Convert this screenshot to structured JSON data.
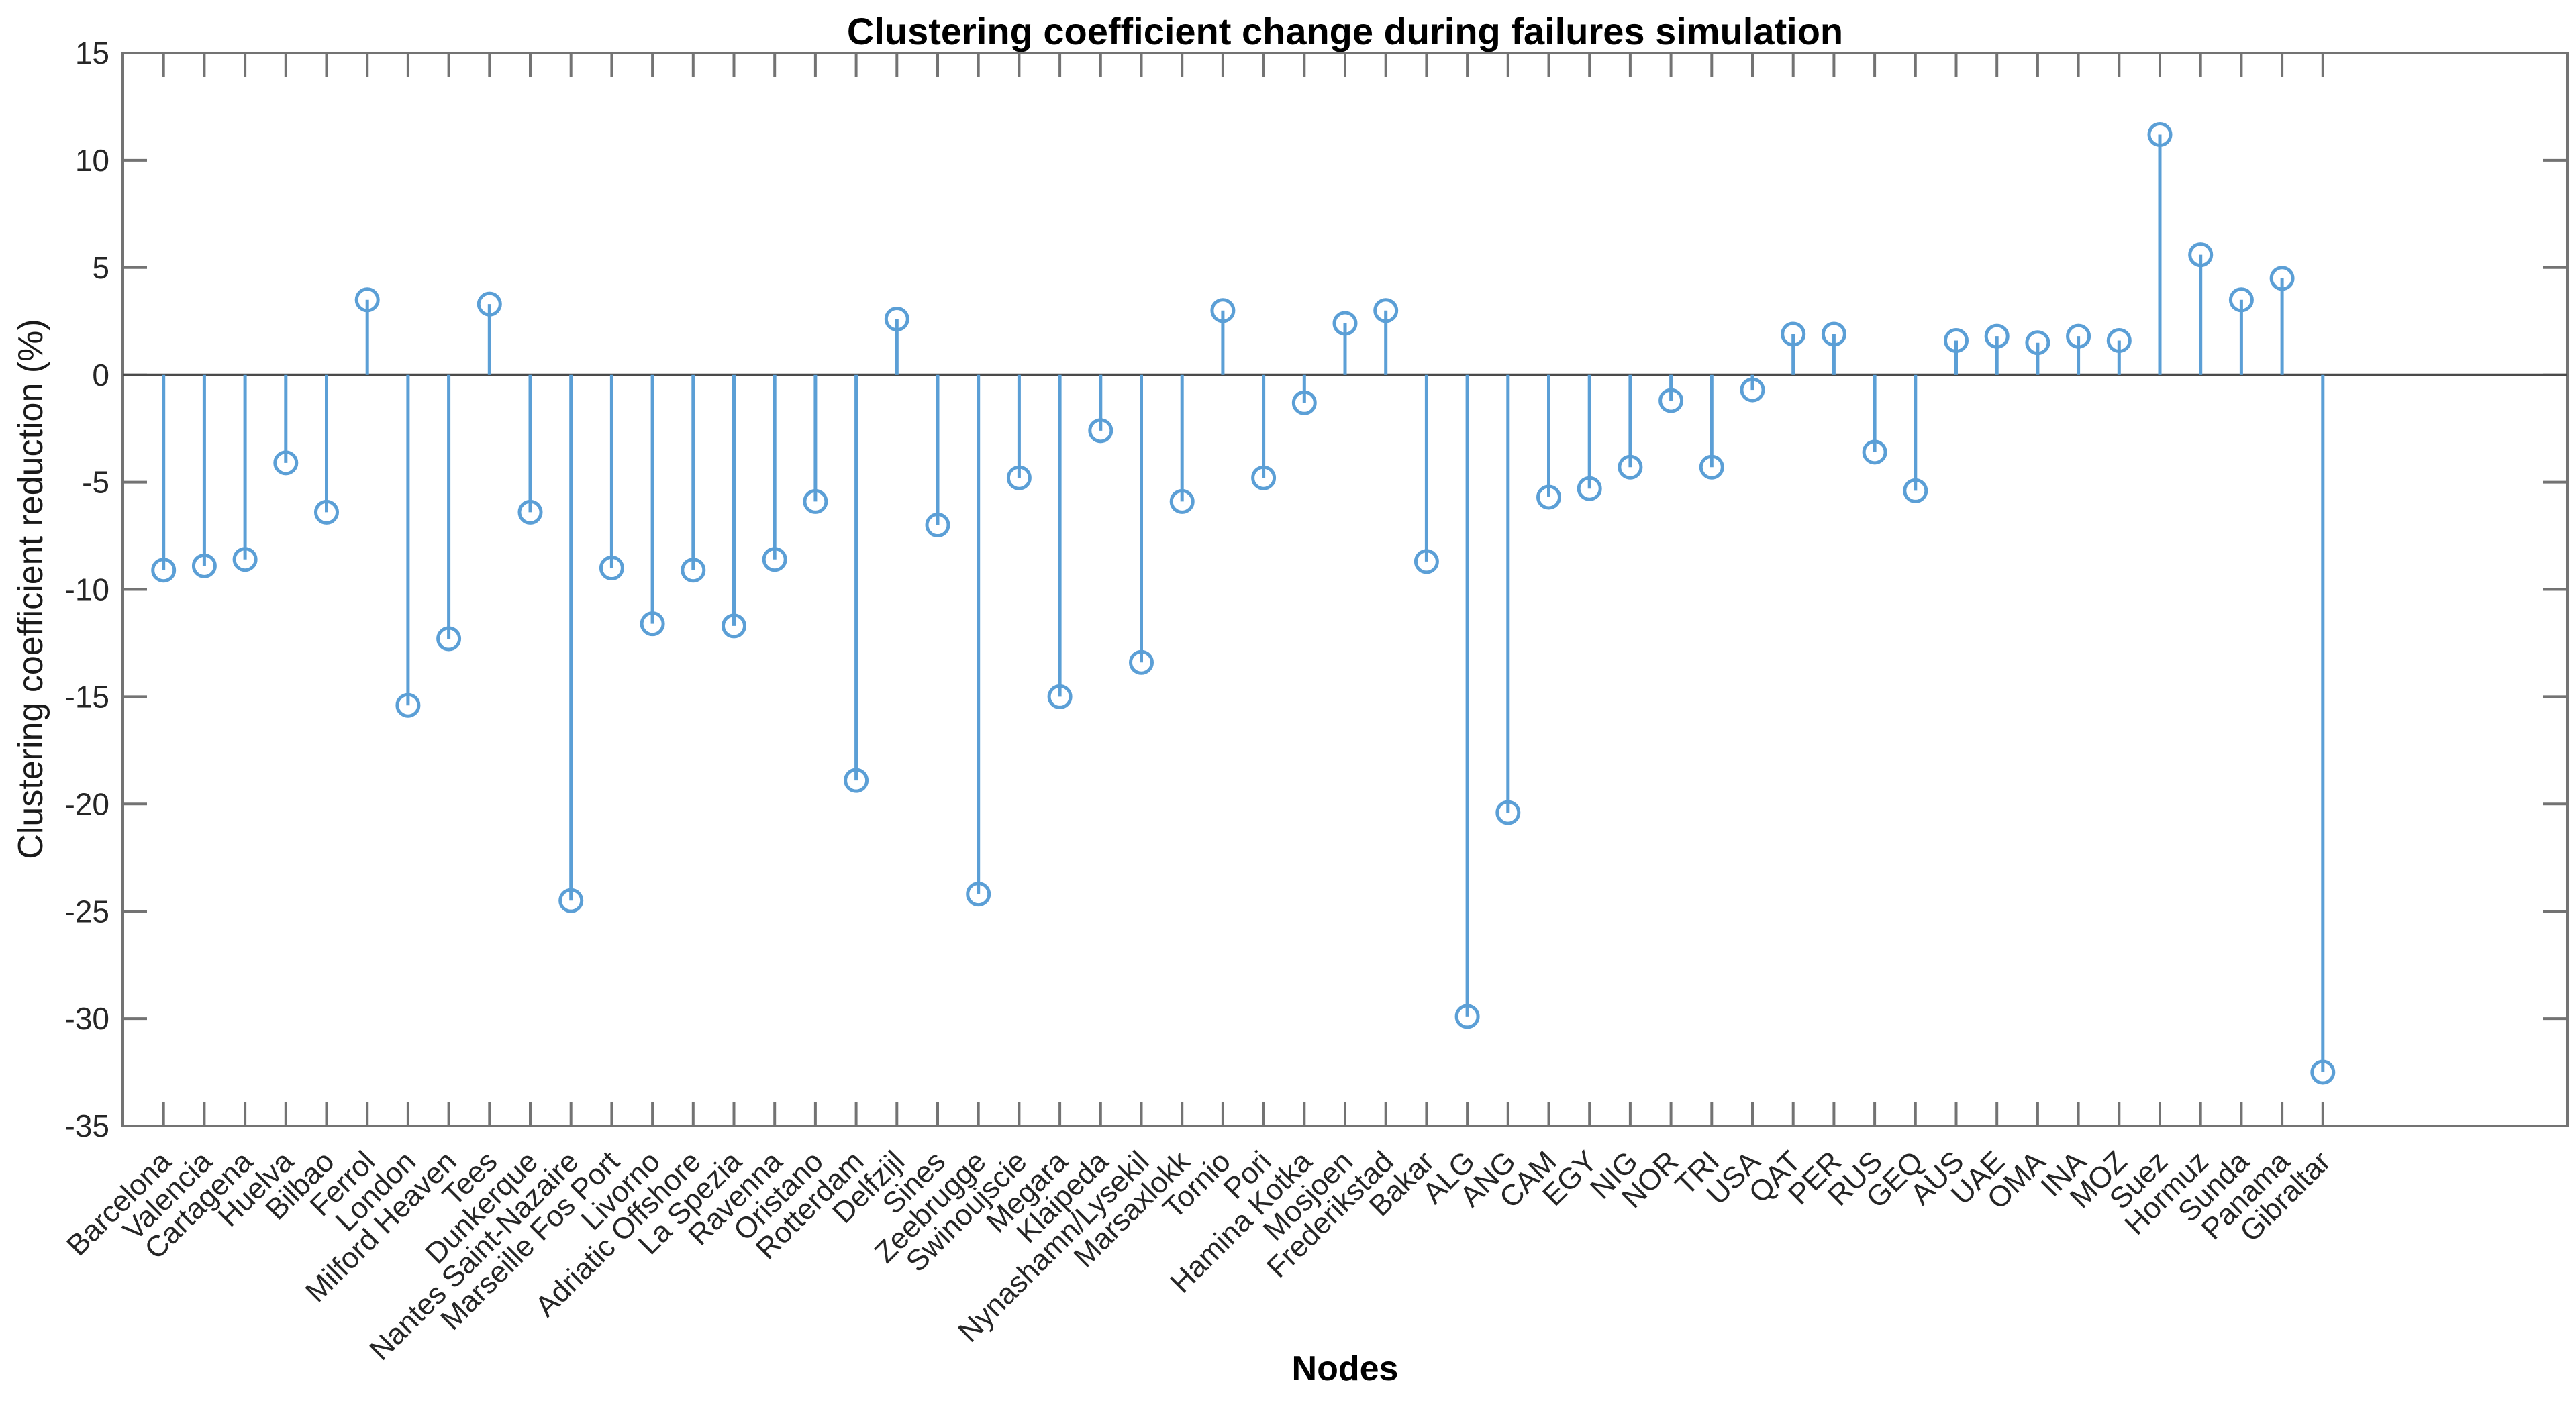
{
  "figure": {
    "title": "Clustering coefficient change during failures simulation",
    "xlabel": "Nodes",
    "ylabel": "Clustering coefficient reduction (%)"
  },
  "chart_data": {
    "type": "stem",
    "marker": "open-circle",
    "title": "Clustering coefficient change during failures simulation",
    "xlabel": "Nodes",
    "ylabel": "Clustering coefficient reduction (%)",
    "grid": false,
    "legend": false,
    "ylim": [
      -35,
      15
    ],
    "ytick_interval": 5,
    "ytick_labels": [
      "15",
      "10",
      "5",
      "0",
      "-5",
      "-10",
      "-15",
      "-20",
      "-25",
      "-30",
      "-35"
    ],
    "xlim_slots": 60,
    "x_tick_angle": 45,
    "stem_color": "#5b9fd6",
    "axis_color": "#737373",
    "zero_line_color": "#4a4a4a",
    "tick_label_color": "#262626",
    "categories": [
      "Barcelona",
      "Valencia",
      "Cartagena",
      "Huelva",
      "Bilbao",
      "Ferrol",
      "London",
      "Milford Heaven",
      "Tees",
      "Dunkerque",
      "Nantes Saint-Nazaire",
      "Marseille Fos Port",
      "Livorno",
      "Adriatic Offshore",
      "La Spezia",
      "Ravenna",
      "Oristano",
      "Rotterdam",
      "Delfzijl",
      "Sines",
      "Zeebrugge",
      "Swinoujscie",
      "Megara",
      "Klaipeda",
      "Nynashamn/Lysekil",
      "Marsaxlokk",
      "Tornio",
      "Pori",
      "Hamina Kotka",
      "Mosjoen",
      "Frederikstad",
      "Bakar",
      "ALG",
      "ANG",
      "CAM",
      "EGY",
      "NIG",
      "NOR",
      "TRI",
      "USA",
      "QAT",
      "PER",
      "RUS",
      "GEQ",
      "AUS",
      "UAE",
      "OMA",
      "INA",
      "MOZ",
      "Suez",
      "Hormuz",
      "Sunda",
      "Panama",
      "Gibraltar"
    ],
    "values": [
      -9.1,
      -8.9,
      -8.6,
      -4.1,
      -6.4,
      3.5,
      -15.4,
      -12.3,
      3.3,
      -6.4,
      -24.5,
      -9.0,
      -11.6,
      -9.1,
      -11.7,
      -8.6,
      -5.9,
      -18.9,
      2.6,
      -7.0,
      -24.2,
      -4.8,
      -15.0,
      -2.6,
      -13.4,
      -5.9,
      3.0,
      -4.8,
      -1.3,
      2.4,
      3.0,
      -8.7,
      -29.9,
      -20.4,
      -5.7,
      -5.3,
      -4.3,
      -1.2,
      -4.3,
      -0.7,
      1.9,
      1.9,
      -3.6,
      -5.4,
      1.6,
      1.8,
      1.5,
      1.8,
      1.6,
      11.2,
      5.6,
      3.5,
      4.5,
      -32.5
    ]
  }
}
